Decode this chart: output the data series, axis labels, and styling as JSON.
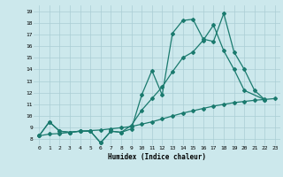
{
  "xlabel": "Humidex (Indice chaleur)",
  "background_color": "#cce8ec",
  "grid_color": "#aacdd4",
  "line_color": "#1a7a6e",
  "xlim": [
    -0.5,
    23.5
  ],
  "ylim": [
    7.5,
    19.5
  ],
  "xticks": [
    0,
    1,
    2,
    3,
    4,
    5,
    6,
    7,
    8,
    9,
    10,
    11,
    12,
    13,
    14,
    15,
    16,
    17,
    18,
    19,
    20,
    21,
    22,
    23
  ],
  "yticks": [
    8,
    9,
    10,
    11,
    12,
    13,
    14,
    15,
    16,
    17,
    18,
    19
  ],
  "line1_x": [
    0,
    1,
    2,
    3,
    4,
    5,
    6,
    7,
    8,
    9,
    10,
    11,
    12,
    13,
    14,
    15,
    16,
    17,
    18,
    19,
    20,
    21,
    22
  ],
  "line1_y": [
    8.3,
    9.5,
    8.7,
    8.6,
    8.7,
    8.7,
    7.7,
    8.7,
    8.6,
    8.9,
    11.8,
    13.9,
    11.8,
    17.1,
    18.2,
    18.3,
    16.6,
    16.4,
    18.8,
    15.5,
    14.0,
    12.2,
    11.4
  ],
  "line2_x": [
    0,
    1,
    2,
    3,
    4,
    5,
    6,
    7,
    8,
    9,
    10,
    11,
    12,
    13,
    14,
    15,
    16,
    17,
    18,
    19,
    20,
    22
  ],
  "line2_y": [
    8.3,
    9.5,
    8.7,
    8.6,
    8.7,
    8.7,
    7.7,
    8.7,
    8.6,
    9.2,
    10.5,
    11.5,
    12.5,
    13.8,
    15.0,
    15.5,
    16.5,
    17.8,
    15.6,
    14.0,
    12.2,
    11.4
  ],
  "line3_x": [
    0,
    1,
    2,
    3,
    4,
    5,
    6,
    7,
    8,
    9,
    10,
    11,
    12,
    13,
    14,
    15,
    16,
    17,
    18,
    19,
    20,
    21,
    22,
    23
  ],
  "line3_y": [
    8.3,
    8.45,
    8.5,
    8.6,
    8.7,
    8.75,
    8.8,
    8.9,
    9.0,
    9.1,
    9.3,
    9.5,
    9.75,
    10.0,
    10.25,
    10.45,
    10.65,
    10.85,
    11.0,
    11.15,
    11.25,
    11.35,
    11.42,
    11.5
  ]
}
